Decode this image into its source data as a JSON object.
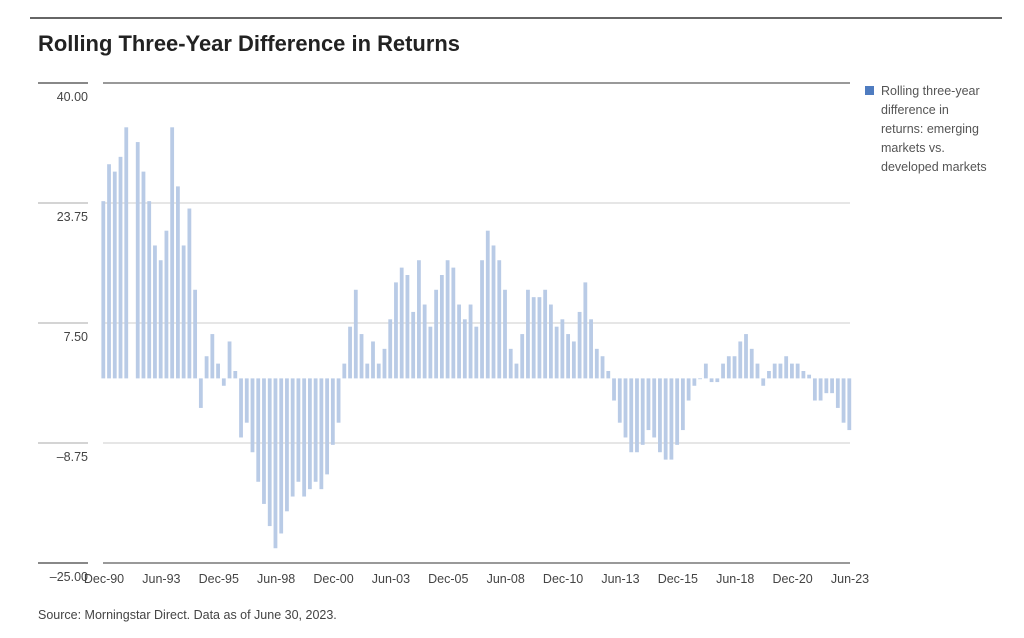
{
  "chart_data": {
    "type": "bar",
    "title": "Rolling Three-Year Difference in Returns",
    "xlabel": "",
    "ylabel": "",
    "ylim": [
      -25,
      40
    ],
    "yticks": [
      "40.00",
      "23.75",
      "7.50",
      "–8.75",
      "–25.00"
    ],
    "ytick_values": [
      40,
      23.75,
      7.5,
      -8.75,
      -25
    ],
    "xticks": [
      "Dec-90",
      "Jun-93",
      "Dec-95",
      "Jun-98",
      "Dec-00",
      "Jun-03",
      "Dec-05",
      "Jun-08",
      "Dec-10",
      "Jun-13",
      "Dec-15",
      "Jun-18",
      "Dec-20",
      "Jun-23"
    ],
    "x_start": "Dec-90",
    "x_end": "Jun-23",
    "x_step": "quarter",
    "grid": true,
    "legend_position": "right",
    "series": [
      {
        "name": "Rolling three-year difference in returns: emerging markets vs. developed markets",
        "legend_lines": [
          "Rolling three-year",
          "difference in",
          "returns: emerging",
          "markets vs.",
          "developed markets"
        ],
        "color": "#b9cbe6",
        "legend_color": "#4f7cc0",
        "values": [
          24,
          29,
          28,
          30,
          34,
          null,
          32,
          28,
          24,
          18,
          16,
          20,
          34,
          26,
          18,
          23,
          12,
          -4,
          3,
          6,
          2,
          -1,
          5,
          1,
          -8,
          -6,
          -10,
          -14,
          -17,
          -20,
          -23,
          -21,
          -18,
          -16,
          -14,
          -16,
          -15,
          -14,
          -15,
          -13,
          -9,
          -6,
          2,
          7,
          12,
          6,
          2,
          5,
          2,
          4,
          8,
          13,
          15,
          14,
          9,
          16,
          10,
          7,
          12,
          14,
          16,
          15,
          10,
          8,
          10,
          7,
          16,
          20,
          18,
          16,
          12,
          4,
          2,
          6,
          12,
          11,
          11,
          12,
          10,
          7,
          8,
          6,
          5,
          9,
          13,
          8,
          4,
          3,
          1,
          -3,
          -6,
          -8,
          -10,
          -10,
          -9,
          -7,
          -8,
          -10,
          -11,
          -11,
          -9,
          -7,
          -3,
          -1,
          0,
          2,
          -0.5,
          -0.5,
          2,
          3,
          3,
          5,
          6,
          4,
          2,
          -1,
          1,
          2,
          2,
          3,
          2,
          2,
          1,
          0.5,
          -3,
          -3,
          -2,
          -2,
          -4,
          -6,
          -7
        ]
      }
    ],
    "source": "Source: Morningstar Direct. Data as of June 30, 2023."
  }
}
